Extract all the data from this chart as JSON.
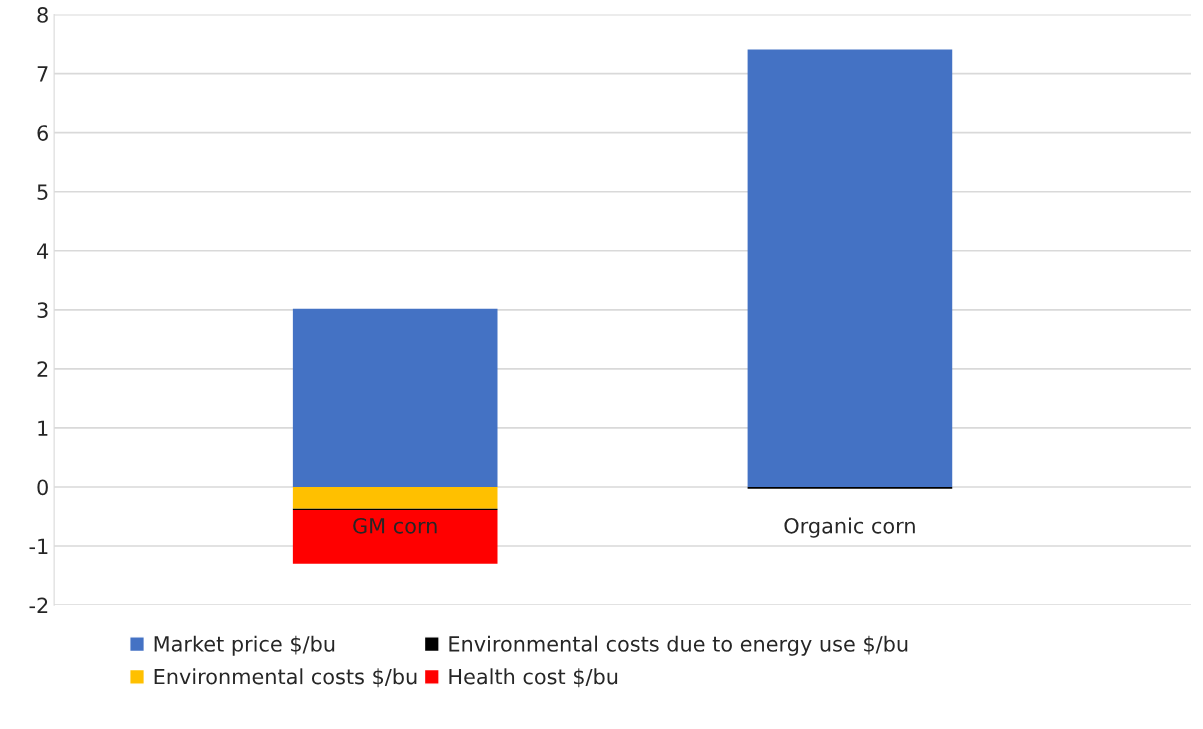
{
  "chart_data": {
    "type": "bar",
    "stacked": true,
    "categories": [
      "GM corn",
      "Organic corn"
    ],
    "series": [
      {
        "name": "Market price $/bu",
        "color": "#4472c4",
        "values": [
          3.02,
          7.41
        ]
      },
      {
        "name": "Environmental costs $/bu",
        "color": "#ffc000",
        "values": [
          -0.37,
          0
        ]
      },
      {
        "name": "Environmental costs due to energy use $/bu",
        "color": "#000000",
        "values": [
          -0.02,
          -0.03
        ]
      },
      {
        "name": "Health cost $/bu",
        "color": "#ff0000",
        "values": [
          -0.91,
          0
        ]
      }
    ],
    "ylim": [
      -2,
      8
    ],
    "yticks": [
      -2,
      -1,
      0,
      1,
      2,
      3,
      4,
      5,
      6,
      7,
      8
    ],
    "grid": "y",
    "legend": "bottom"
  }
}
